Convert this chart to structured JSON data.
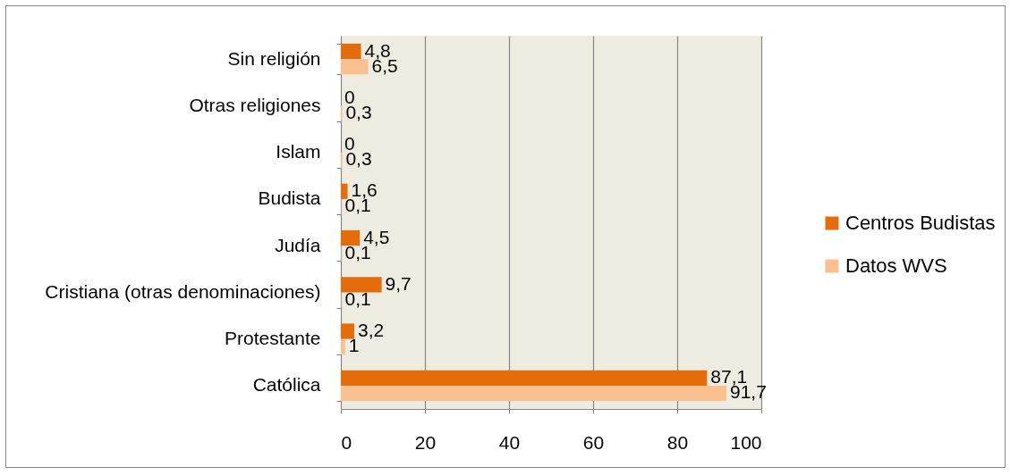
{
  "chart_data": {
    "type": "bar",
    "orientation": "horizontal",
    "categories": [
      "Sin religión",
      "Otras religiones",
      "Islam",
      "Budista",
      "Judía",
      "Cristiana (otras denominaciones)",
      "Protestante",
      "Católica"
    ],
    "series": [
      {
        "name": "Centros Budistas",
        "color": "#e46c0a",
        "values": [
          4.8,
          0,
          0,
          1.6,
          4.5,
          9.7,
          3.2,
          87.1
        ],
        "value_labels": [
          "4,8",
          "0",
          "0",
          "1,6",
          "4,5",
          "9,7",
          "3,2",
          "87,1"
        ]
      },
      {
        "name": "Datos WVS",
        "color": "#fac090",
        "values": [
          6.5,
          0.3,
          0.3,
          0.1,
          0.1,
          0.1,
          1,
          91.7
        ],
        "value_labels": [
          "6,5",
          "0,3",
          "0,3",
          "0,1",
          "0,1",
          "0,1",
          "1",
          "91,7"
        ]
      }
    ],
    "xlim": [
      0,
      100
    ],
    "xticks": [
      0,
      20,
      40,
      60,
      80,
      100
    ],
    "grid": "x",
    "legend": "right"
  }
}
